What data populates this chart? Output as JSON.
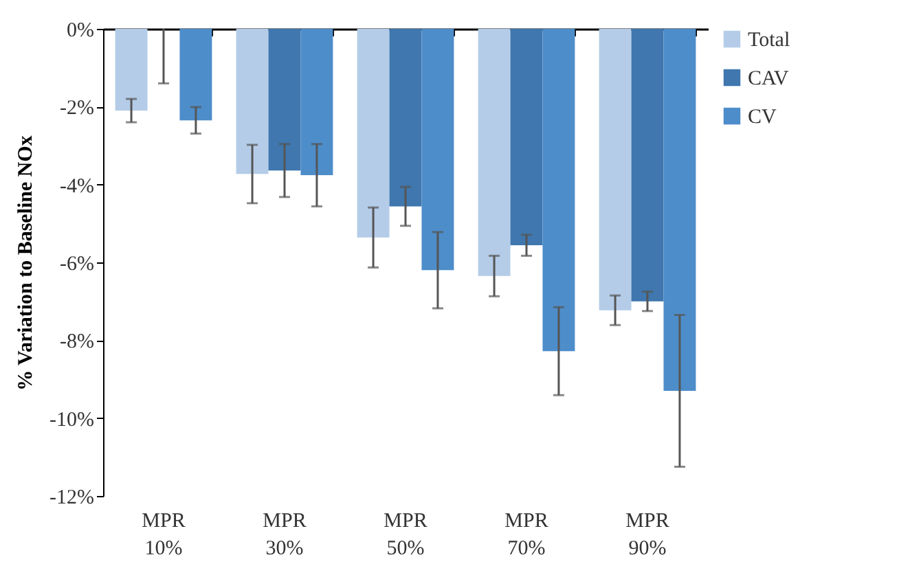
{
  "chart_data": {
    "type": "bar",
    "ylabel": "% Variation to Baseline NOx",
    "categories": [
      "MPR 10%",
      "MPR 30%",
      "MPR 50%",
      "MPR 70%",
      "MPR 90%"
    ],
    "series": [
      {
        "name": "Total",
        "color": "#b4cce8",
        "values": [
          -2.1,
          -3.73,
          -5.36,
          -6.35,
          -7.23
        ],
        "errors": [
          0.3,
          0.75,
          0.77,
          0.52,
          0.38
        ]
      },
      {
        "name": "CAV",
        "color": "#3f77ae",
        "values": [
          0,
          -3.64,
          -4.56,
          -5.56,
          -7.0
        ],
        "errors": [
          [
            -1.4,
            0
          ],
          0.68,
          0.5,
          0.27,
          0.25
        ]
      },
      {
        "name": "CV",
        "color": "#4d8dca",
        "values": [
          -2.35,
          -3.76,
          -6.2,
          -8.28,
          -9.3
        ],
        "errors": [
          0.34,
          0.8,
          0.98,
          1.13,
          1.95
        ]
      }
    ],
    "ylim": [
      -12,
      0
    ],
    "yticks": [
      {
        "value": -12,
        "label": "-12%"
      },
      {
        "value": -10,
        "label": "-10%"
      },
      {
        "value": -8,
        "label": "-8%"
      },
      {
        "value": -6,
        "label": "-6%"
      },
      {
        "value": -4,
        "label": "-4%"
      },
      {
        "value": -2,
        "label": "-2%"
      },
      {
        "value": 0,
        "label": "0%"
      }
    ],
    "grid": false,
    "legend": "right"
  }
}
